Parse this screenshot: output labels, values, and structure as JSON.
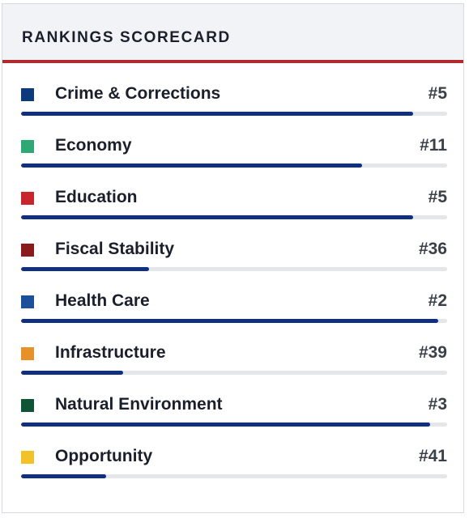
{
  "header": {
    "title": "RANKINGS SCORECARD"
  },
  "rankings": [
    {
      "label": "Crime & Corrections",
      "rank": "#5",
      "color": "#0d3a7d",
      "progress": 0.92
    },
    {
      "label": "Economy",
      "rank": "#11",
      "color": "#2fa876",
      "progress": 0.8
    },
    {
      "label": "Education",
      "rank": "#5",
      "color": "#c8252c",
      "progress": 0.92
    },
    {
      "label": "Fiscal Stability",
      "rank": "#36",
      "color": "#8b1a1d",
      "progress": 0.3
    },
    {
      "label": "Health Care",
      "rank": "#2",
      "color": "#1c4f9c",
      "progress": 0.98
    },
    {
      "label": "Infrastructure",
      "rank": "#39",
      "color": "#e8912a",
      "progress": 0.24
    },
    {
      "label": "Natural Environment",
      "rank": "#3",
      "color": "#0e5435",
      "progress": 0.96
    },
    {
      "label": "Opportunity",
      "rank": "#41",
      "color": "#f2c22a",
      "progress": 0.2
    }
  ]
}
